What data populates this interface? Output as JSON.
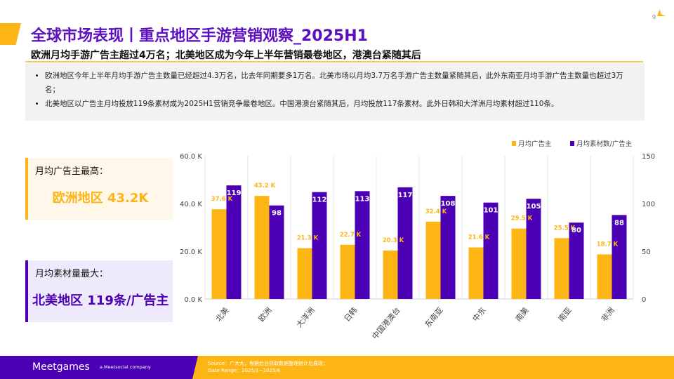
{
  "header": {
    "title": "全球市场表现丨重点地区手游营销观察_2025H1",
    "subtitle": "欧洲月均手游广告主超过4万名；北美地区成为今年上半年营销最卷地区，港澳台紧随其后",
    "page_number": "9"
  },
  "bullets": [
    "欧洲地区今年上半年月均手游广告主数量已经超过4.3万名，比去年同期要多1万名。北美市场以月均3.7万名手游广告主数量紧随其后，此外东南亚月均手游广告主数量也超过3万名；",
    "北美地区以广告主月均投放119条素材成为2025H1营销竞争最卷地区。中国港澳台紧随其后，月均投放117条素材。此外日韩和大洋洲月均素材超过110条。"
  ],
  "cards": [
    {
      "label": "月均广告主最高：",
      "value": "欧洲地区 43.2K"
    },
    {
      "label": "月均素材量最大：",
      "value": "北美地区 119条/广告主"
    }
  ],
  "footer": {
    "logo": "Meetgames",
    "tagline": "a Meetsocial company",
    "source": "Source：广大大，根据后台抓取数据整理统计后展现；",
    "date_range": "Date Range：2025/1~2025/6"
  },
  "colors": {
    "primary": "#4B00B5",
    "accent": "#FDB515"
  },
  "chart_data": {
    "type": "bar",
    "categories": [
      "北美",
      "欧洲",
      "大洋洲",
      "日韩",
      "中国港澳台",
      "东南亚",
      "中东",
      "南美",
      "南亚",
      "非洲"
    ],
    "series": [
      {
        "name": "月均广告主",
        "axis": "left",
        "values": [
          37.6,
          43.2,
          21.3,
          22.7,
          20.3,
          32.4,
          21.6,
          29.5,
          25.5,
          18.7
        ],
        "labels": [
          "37.6 K",
          "43.2 K",
          "21.3 K",
          "22.7 K",
          "20.3 K",
          "32.4 K",
          "21.6 K",
          "29.5 K",
          "25.5 K",
          "18.7 K"
        ],
        "color": "#FDB515"
      },
      {
        "name": "月均素材数/广告主",
        "axis": "right",
        "values": [
          119,
          98,
          112,
          113,
          117,
          108,
          101,
          105,
          80,
          88
        ],
        "color": "#4B00B5"
      }
    ],
    "y_left": {
      "ticks": [
        "0.0 K",
        "20.0 K",
        "40.0 K",
        "60.0 K"
      ],
      "range": [
        0,
        60
      ]
    },
    "y_right": {
      "ticks": [
        "0",
        "50",
        "100",
        "150"
      ],
      "range": [
        0,
        150
      ]
    },
    "legend": "top-right",
    "grid": "vertical"
  }
}
